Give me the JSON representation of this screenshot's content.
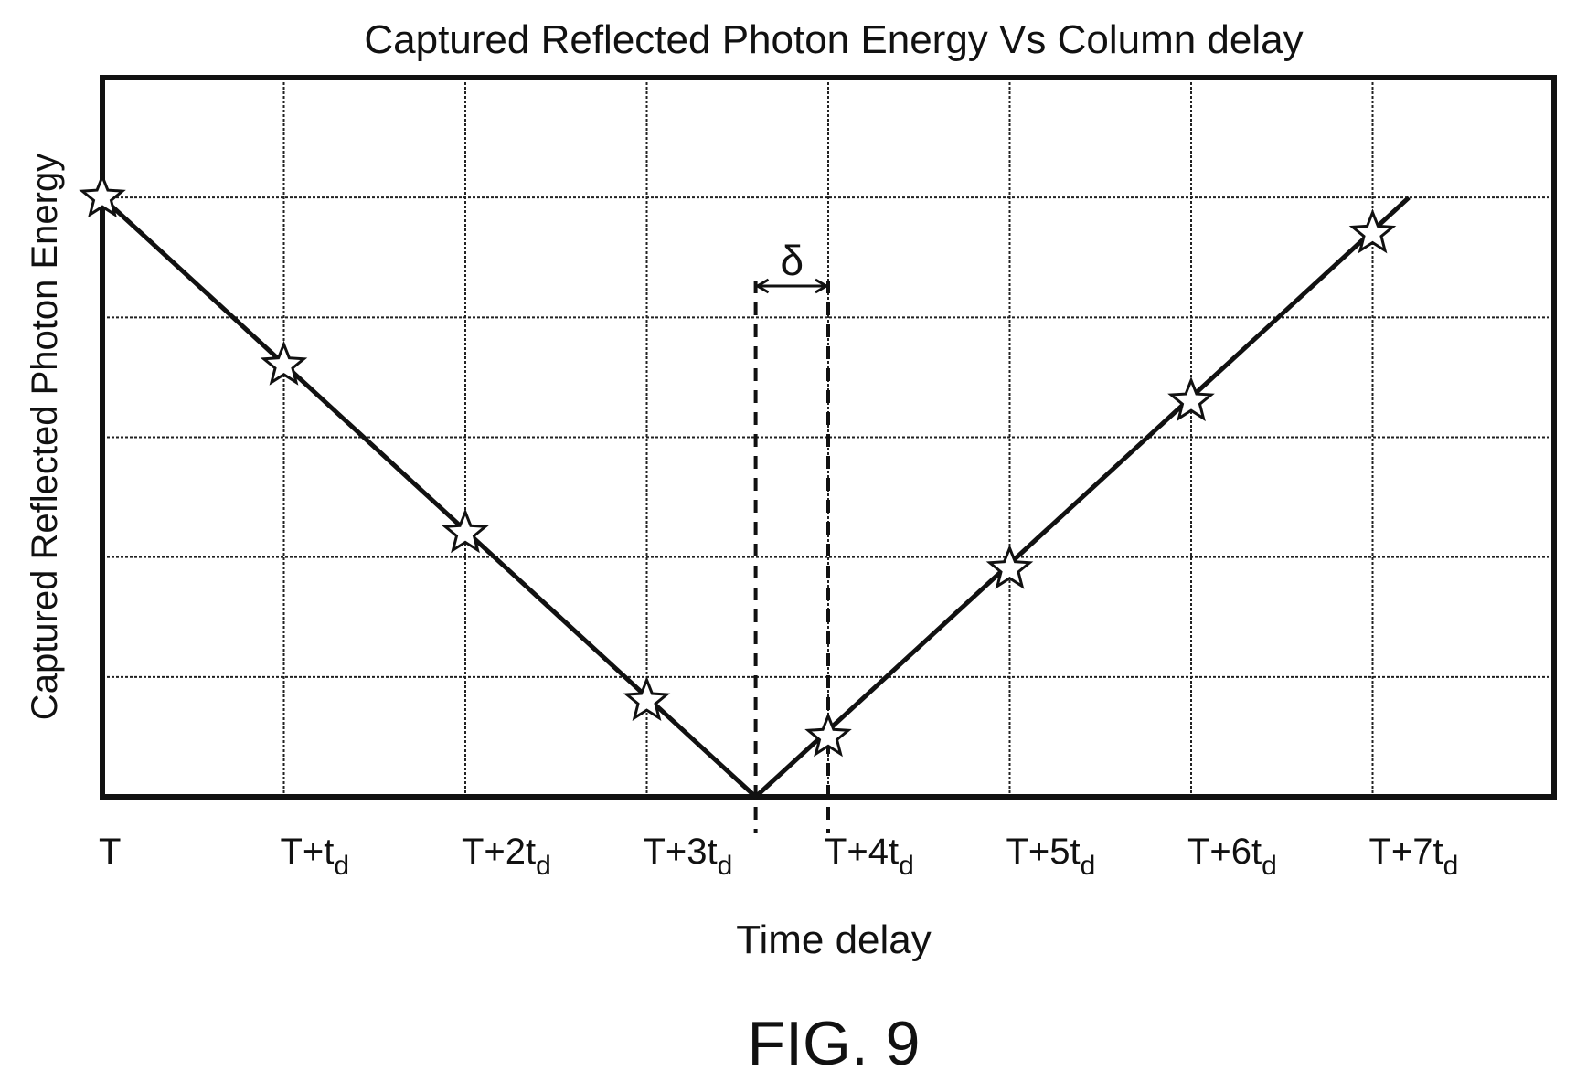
{
  "chart_data": {
    "type": "line",
    "title": "Captured Reflected Photon Energy Vs Column delay",
    "xlabel": "Time delay",
    "ylabel": "Captured Reflected Photon Energy",
    "categories": [
      "T",
      "T+t",
      "T+2t",
      "T+3t",
      "T+4t",
      "T+5t",
      "T+6t",
      "T+7t"
    ],
    "tick_subscript": [
      "",
      "d",
      "d",
      "d",
      "d",
      "d",
      "d",
      "d"
    ],
    "x": [
      0,
      1,
      2,
      3,
      4,
      5,
      6,
      7
    ],
    "xlim": [
      0,
      8
    ],
    "ylim": [
      0,
      6
    ],
    "grid": true,
    "series": [
      {
        "line_x": [
          0,
          3.6,
          7.2
        ],
        "line_y": [
          5.0,
          0.0,
          5.0
        ],
        "marker": "star",
        "points_x": [
          0,
          1,
          2,
          3,
          4,
          5,
          6,
          7
        ],
        "points_y": [
          5.0,
          3.6,
          2.2,
          0.8,
          0.5,
          1.9,
          3.3,
          4.7
        ]
      }
    ],
    "annotations": [
      {
        "type": "dimension",
        "label": "δ",
        "x_from": 3.6,
        "x_to": 4.0
      }
    ],
    "figure_label": "FIG. 9"
  }
}
